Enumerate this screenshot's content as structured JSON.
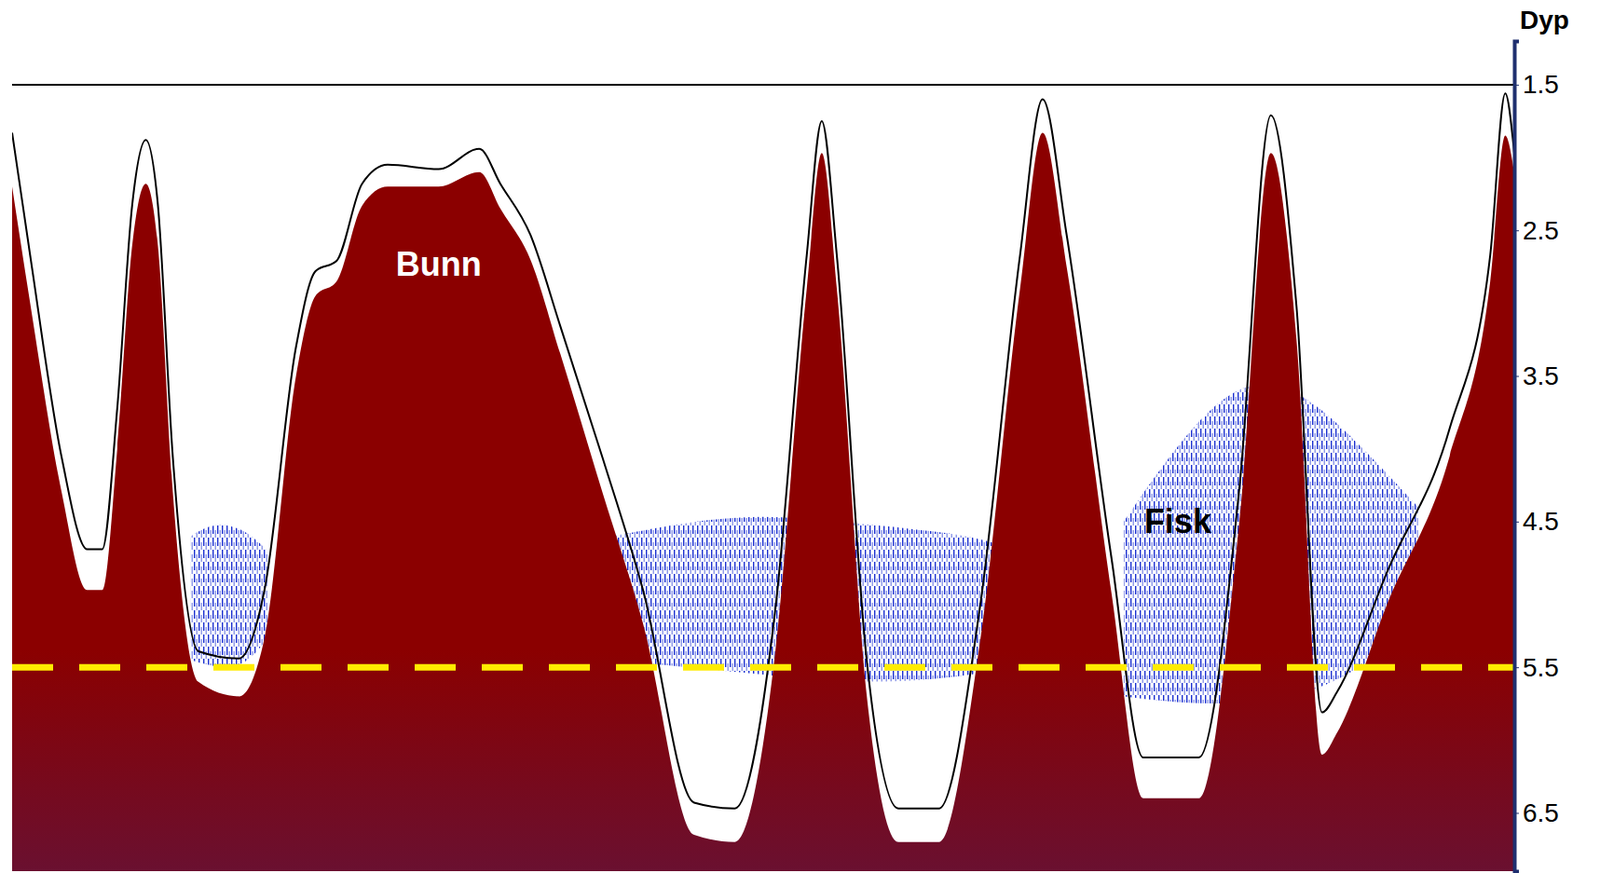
{
  "chart_data": {
    "type": "echogram",
    "y_label": "Dyp",
    "x": [
      0,
      1.2,
      3.3,
      5.0,
      6.0,
      7.0,
      8.0,
      8.9,
      9.7,
      10.7,
      12.4,
      15.1,
      16.8,
      18.9,
      20.2,
      21.6,
      23.3,
      25.0,
      28.4,
      31.1,
      32.5,
      34.5,
      36.5,
      39.3,
      42.0,
      45.4,
      48.1,
      50.8,
      52.9,
      53.9,
      54.9,
      56.9,
      59.0,
      61.7,
      64.4,
      67.1,
      68.6,
      70.2,
      73.2,
      75.3,
      79.0,
      81.7,
      83.8,
      85.5,
      87.2,
      88.2,
      91.6,
      95.7,
      98.4,
      99.4,
      100
    ],
    "xlim": [
      0,
      100
    ],
    "ylim": [
      1.2,
      6.9
    ],
    "yticks": [
      1.5,
      2.5,
      3.5,
      4.5,
      5.5,
      6.5
    ],
    "tick_labels": "y",
    "series": [
      {
        "type": "area",
        "color": "#8b0000",
        "values": [
          2.2,
          3.0,
          4.3,
          4.97,
          4.97,
          4.0,
          2.6,
          2.18,
          2.6,
          4.3,
          5.6,
          5.7,
          5.3,
          3.5,
          2.95,
          2.85,
          2.33,
          2.2,
          2.2,
          2.1,
          2.35,
          2.7,
          3.35,
          4.3,
          5.2,
          6.65,
          6.7,
          5.4,
          2.9,
          1.97,
          2.9,
          5.7,
          6.7,
          6.7,
          5.35,
          2.9,
          1.83,
          2.75,
          5.0,
          6.4,
          6.4,
          4.5,
          1.97,
          3.25,
          6.1,
          5.95,
          5.05,
          4.05,
          2.85,
          1.85,
          2.1
        ]
      },
      {
        "type": "line",
        "color": "#000000",
        "values": [
          1.83,
          2.67,
          4.06,
          4.69,
          4.69,
          3.72,
          2.32,
          1.88,
          2.32,
          4.06,
          5.39,
          5.44,
          4.97,
          3.3,
          2.78,
          2.71,
          2.18,
          2.05,
          2.08,
          1.94,
          2.18,
          2.53,
          3.16,
          4.06,
          4.97,
          6.43,
          6.47,
          5.11,
          2.67,
          1.75,
          2.67,
          5.46,
          6.47,
          6.47,
          5.11,
          2.67,
          1.6,
          2.53,
          4.76,
          6.12,
          6.12,
          4.27,
          1.71,
          3.02,
          5.81,
          5.67,
          4.83,
          3.86,
          2.67,
          1.56,
          1.97
        ]
      }
    ],
    "fish": [
      {
        "color": "#1a2fd0",
        "x": [
          11.9,
          13.5,
          15.5,
          17.0
        ],
        "top": [
          4.6,
          4.5,
          4.55,
          4.7
        ],
        "bottom": [
          5.45,
          5.5,
          5.5,
          5.3
        ]
      },
      {
        "color": "#1a2fd0",
        "x": [
          40.0,
          45,
          50,
          55,
          60,
          64,
          67
        ],
        "top": [
          4.6,
          4.5,
          4.45,
          4.5,
          4.55,
          4.6,
          4.7
        ],
        "bottom": [
          5.45,
          5.5,
          5.55,
          5.6,
          5.6,
          5.55,
          5.5
        ]
      },
      {
        "color": "#1a2fd0",
        "x": [
          74.0,
          78,
          82,
          86,
          90,
          93.6
        ],
        "top": [
          4.5,
          3.9,
          3.5,
          3.6,
          4.0,
          4.4
        ],
        "bottom": [
          5.7,
          5.75,
          5.75,
          5.7,
          5.5,
          5.2
        ]
      }
    ],
    "reference_lines": [
      {
        "y": 1.5,
        "color": "#000000",
        "line_style": "solid"
      },
      {
        "y": 5.5,
        "color": "#ffec00",
        "line_style": "dashed"
      }
    ],
    "annotations": [
      {
        "text": "Bunn",
        "x": 28.4,
        "y": 2.75,
        "color": "#ffffff"
      },
      {
        "text": "Fisk",
        "x": 77.6,
        "y": 4.52,
        "color": "#000000"
      }
    ]
  }
}
